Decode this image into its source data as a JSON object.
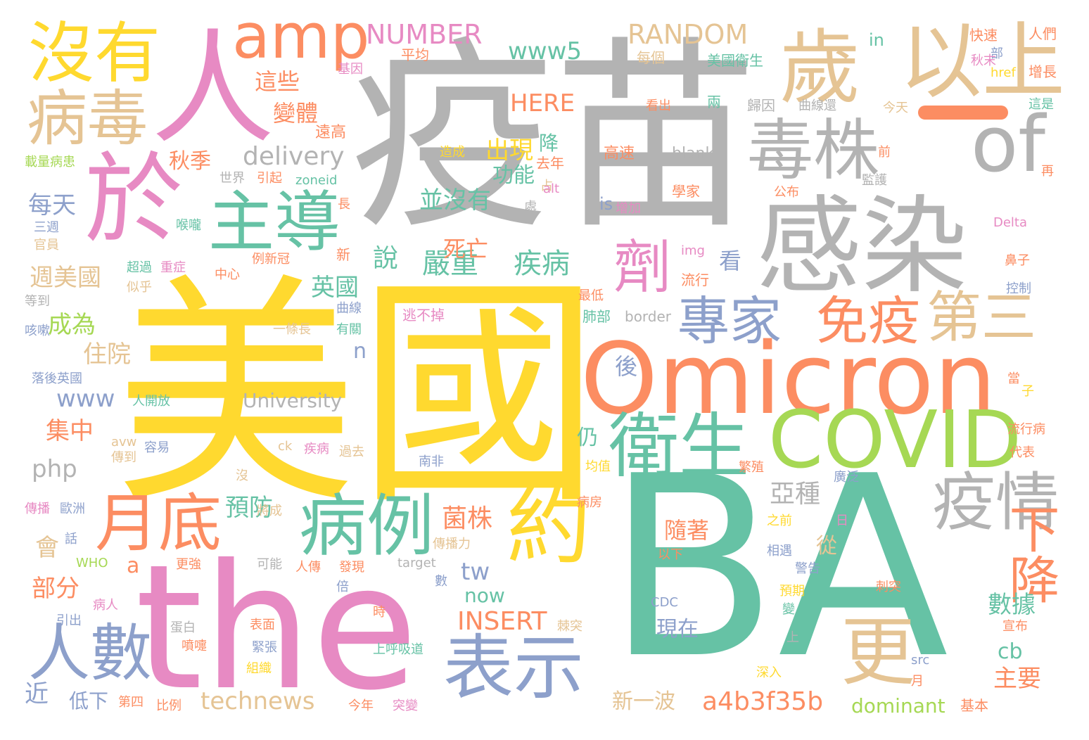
{
  "title": "",
  "palette": [
    "#b3b3b3",
    "#ffd92f",
    "#66c2a5",
    "#e78ac3",
    "#fc8d62",
    "#8da0cb",
    "#a6d854",
    "#e5c494"
  ],
  "words": [
    {
      "text": "疫苗",
      "color": "#b3b3b3"
    },
    {
      "text": "美國",
      "color": "#ffd92f"
    },
    {
      "text": "BA",
      "color": "#66c2a5"
    },
    {
      "text": "the",
      "color": "#e78ac3"
    },
    {
      "text": "Omicron",
      "color": "#fc8d62"
    },
    {
      "text": "感染",
      "color": "#b3b3b3"
    },
    {
      "text": "以上",
      "color": "#e5c494"
    },
    {
      "text": "歲",
      "color": "#e5c494"
    },
    {
      "text": "人",
      "color": "#e78ac3"
    },
    {
      "text": "於",
      "color": "#e78ac3"
    },
    {
      "text": "沒有",
      "color": "#ffd92f"
    },
    {
      "text": "病毒",
      "color": "#e5c494"
    },
    {
      "text": "amp",
      "color": "#fc8d62"
    },
    {
      "text": "of",
      "color": "#b3b3b3"
    },
    {
      "text": "毒株",
      "color": "#b3b3b3"
    },
    {
      "text": "主導",
      "color": "#66c2a5"
    },
    {
      "text": "COVID",
      "color": "#a6d854"
    },
    {
      "text": "衛生",
      "color": "#66c2a5"
    },
    {
      "text": "專家",
      "color": "#8da0cb"
    },
    {
      "text": "免疫",
      "color": "#fc8d62"
    },
    {
      "text": "第三",
      "color": "#e5c494"
    },
    {
      "text": "疫情",
      "color": "#b3b3b3"
    },
    {
      "text": "病例",
      "color": "#66c2a5"
    },
    {
      "text": "約",
      "color": "#ffd92f"
    },
    {
      "text": "表示",
      "color": "#8da0cb"
    },
    {
      "text": "月底",
      "color": "#fc8d62"
    },
    {
      "text": "人數",
      "color": "#8da0cb"
    },
    {
      "text": "更",
      "color": "#e5c494"
    },
    {
      "text": "劑",
      "color": "#e78ac3"
    },
    {
      "text": "下降",
      "color": "#fc8d62"
    },
    {
      "text": "NUMBER",
      "color": "#e78ac3"
    },
    {
      "text": "RANDOM",
      "color": "#e5c494"
    },
    {
      "text": "www5",
      "color": "#66c2a5"
    },
    {
      "text": "HERE",
      "color": "#fc8d62"
    },
    {
      "text": "這些",
      "color": "#fc8d62"
    },
    {
      "text": "變體",
      "color": "#fc8d62"
    },
    {
      "text": "delivery",
      "color": "#b3b3b3"
    },
    {
      "text": "秋季",
      "color": "#fc8d62"
    },
    {
      "text": "降",
      "color": "#66c2a5"
    },
    {
      "text": "出現",
      "color": "#ffd92f"
    },
    {
      "text": "功能",
      "color": "#66c2a5"
    },
    {
      "text": "並沒有",
      "color": "#66c2a5"
    },
    {
      "text": "每天",
      "color": "#8da0cb"
    },
    {
      "text": "嚴重",
      "color": "#66c2a5"
    },
    {
      "text": "疾病",
      "color": "#66c2a5"
    },
    {
      "text": "死亡",
      "color": "#fc8d62"
    },
    {
      "text": "說",
      "color": "#66c2a5"
    },
    {
      "text": "看",
      "color": "#8da0cb"
    },
    {
      "text": "週美國",
      "color": "#e5c494"
    },
    {
      "text": "英國",
      "color": "#66c2a5"
    },
    {
      "text": "成為",
      "color": "#a6d854"
    },
    {
      "text": "住院",
      "color": "#e5c494"
    },
    {
      "text": "n",
      "color": "#8da0cb"
    },
    {
      "text": "www",
      "color": "#8da0cb"
    },
    {
      "text": "University",
      "color": "#b3b3b3"
    },
    {
      "text": "集中",
      "color": "#fc8d62"
    },
    {
      "text": "php",
      "color": "#b3b3b3"
    },
    {
      "text": "仍",
      "color": "#66c2a5"
    },
    {
      "text": "亞種",
      "color": "#b3b3b3"
    },
    {
      "text": "預防",
      "color": "#66c2a5"
    },
    {
      "text": "菌株",
      "color": "#fc8d62"
    },
    {
      "text": "隨著",
      "color": "#fc8d62"
    },
    {
      "text": "從",
      "color": "#e5c494"
    },
    {
      "text": "會",
      "color": "#e5c494"
    },
    {
      "text": "a",
      "color": "#fc8d62"
    },
    {
      "text": "部分",
      "color": "#fc8d62"
    },
    {
      "text": "tw",
      "color": "#8da0cb"
    },
    {
      "text": "now",
      "color": "#66c2a5"
    },
    {
      "text": "INSERT",
      "color": "#fc8d62"
    },
    {
      "text": "現在",
      "color": "#8da0cb"
    },
    {
      "text": "數據",
      "color": "#66c2a5"
    },
    {
      "text": "cb",
      "color": "#66c2a5"
    },
    {
      "text": "主要",
      "color": "#fc8d62"
    },
    {
      "text": "近",
      "color": "#8da0cb"
    },
    {
      "text": "低下",
      "color": "#8da0cb"
    },
    {
      "text": "technews",
      "color": "#e5c494"
    },
    {
      "text": "新一波",
      "color": "#e5c494"
    },
    {
      "text": "a4b3f35b",
      "color": "#fc8d62"
    },
    {
      "text": "dominant",
      "color": "#a6d854"
    },
    {
      "text": "基本",
      "color": "#fc8d62"
    },
    {
      "text": "後",
      "color": "#8da0cb"
    },
    {
      "text": "in",
      "color": "#66c2a5"
    },
    {
      "text": "快速",
      "color": "#fc8d62"
    },
    {
      "text": "人們",
      "color": "#fc8d62"
    },
    {
      "text": "部",
      "color": "#8da0cb"
    },
    {
      "text": "href",
      "color": "#ffd92f"
    },
    {
      "text": "增長",
      "color": "#fc8d62"
    },
    {
      "text": "平均",
      "color": "#fc8d62"
    },
    {
      "text": "每個",
      "color": "#e5c494"
    },
    {
      "text": "美國衛生",
      "color": "#66c2a5"
    },
    {
      "text": "秋末",
      "color": "#e78ac3"
    },
    {
      "text": "基因",
      "color": "#e78ac3"
    },
    {
      "text": "兩",
      "color": "#66c2a5"
    },
    {
      "text": "歸因",
      "color": "#b3b3b3"
    },
    {
      "text": "曲線還",
      "color": "#b3b3b3"
    },
    {
      "text": "這是",
      "color": "#66c2a5"
    },
    {
      "text": "看出",
      "color": "#fc8d62"
    },
    {
      "text": "今天",
      "color": "#e5c494"
    },
    {
      "text": "遠高",
      "color": "#fc8d62"
    },
    {
      "text": "造成",
      "color": "#ffd92f"
    },
    {
      "text": "高速",
      "color": "#fc8d62"
    },
    {
      "text": "blank",
      "color": "#b3b3b3"
    },
    {
      "text": "前",
      "color": "#fc8d62"
    },
    {
      "text": "載量病患",
      "color": "#a6d854"
    },
    {
      "text": "去年",
      "color": "#fc8d62"
    },
    {
      "text": "再",
      "color": "#fc8d62"
    },
    {
      "text": "世界",
      "color": "#b3b3b3"
    },
    {
      "text": "引起",
      "color": "#fc8d62"
    },
    {
      "text": "zoneid",
      "color": "#66c2a5"
    },
    {
      "text": "監護",
      "color": "#b3b3b3"
    },
    {
      "text": "占",
      "color": "#e5c494"
    },
    {
      "text": "alt",
      "color": "#e78ac3"
    },
    {
      "text": "學家",
      "color": "#fc8d62"
    },
    {
      "text": "公布",
      "color": "#fc8d62"
    },
    {
      "text": "長",
      "color": "#fc8d62"
    },
    {
      "text": "處",
      "color": "#b3b3b3"
    },
    {
      "text": "is",
      "color": "#8da0cb"
    },
    {
      "text": "增加",
      "color": "#e78ac3"
    },
    {
      "text": "三週",
      "color": "#8da0cb"
    },
    {
      "text": "官員",
      "color": "#e5c494"
    },
    {
      "text": "喉嚨",
      "color": "#66c2a5"
    },
    {
      "text": "Delta",
      "color": "#e78ac3"
    },
    {
      "text": "新",
      "color": "#fc8d62"
    },
    {
      "text": "img",
      "color": "#e78ac3"
    },
    {
      "text": "例新冠",
      "color": "#fc8d62"
    },
    {
      "text": "鼻子",
      "color": "#fc8d62"
    },
    {
      "text": "超過",
      "color": "#66c2a5"
    },
    {
      "text": "重症",
      "color": "#e78ac3"
    },
    {
      "text": "中心",
      "color": "#fc8d62"
    },
    {
      "text": "似乎",
      "color": "#e5c494"
    },
    {
      "text": "流行",
      "color": "#fc8d62"
    },
    {
      "text": "控制",
      "color": "#8da0cb"
    },
    {
      "text": "等到",
      "color": "#b3b3b3"
    },
    {
      "text": "最低",
      "color": "#fc8d62"
    },
    {
      "text": "曲線",
      "color": "#8da0cb"
    },
    {
      "text": "border",
      "color": "#b3b3b3"
    },
    {
      "text": "肺部",
      "color": "#66c2a5"
    },
    {
      "text": "逃不掉",
      "color": "#e78ac3"
    },
    {
      "text": "一條長",
      "color": "#e5c494"
    },
    {
      "text": "有關",
      "color": "#66c2a5"
    },
    {
      "text": "咳嗽",
      "color": "#8da0cb"
    },
    {
      "text": "落後英國",
      "color": "#8da0cb"
    },
    {
      "text": "當",
      "color": "#fc8d62"
    },
    {
      "text": "子",
      "color": "#ffd92f"
    },
    {
      "text": "人開放",
      "color": "#66c2a5"
    },
    {
      "text": "流行病",
      "color": "#fc8d62"
    },
    {
      "text": "avw",
      "color": "#e5c494"
    },
    {
      "text": "容易",
      "color": "#8da0cb"
    },
    {
      "text": "ck",
      "color": "#e5c494"
    },
    {
      "text": "疾病",
      "color": "#e78ac3"
    },
    {
      "text": "過去",
      "color": "#e5c494"
    },
    {
      "text": "傳到",
      "color": "#e5c494"
    },
    {
      "text": "南非",
      "color": "#8da0cb"
    },
    {
      "text": "代表",
      "color": "#fc8d62"
    },
    {
      "text": "沒",
      "color": "#e5c494"
    },
    {
      "text": "均值",
      "color": "#ffd92f"
    },
    {
      "text": "繁殖",
      "color": "#fc8d62"
    },
    {
      "text": "廣泛",
      "color": "#8da0cb"
    },
    {
      "text": "傳播",
      "color": "#e78ac3"
    },
    {
      "text": "歐洲",
      "color": "#8da0cb"
    },
    {
      "text": "病房",
      "color": "#fc8d62"
    },
    {
      "text": "將成",
      "color": "#e5c494"
    },
    {
      "text": "之前",
      "color": "#ffd92f"
    },
    {
      "text": "日",
      "color": "#e78ac3"
    },
    {
      "text": "話",
      "color": "#8da0cb"
    },
    {
      "text": "傳播力",
      "color": "#e5c494"
    },
    {
      "text": "以下",
      "color": "#fc8d62"
    },
    {
      "text": "相遇",
      "color": "#8da0cb"
    },
    {
      "text": "WHO",
      "color": "#a6d854"
    },
    {
      "text": "更強",
      "color": "#fc8d62"
    },
    {
      "text": "可能",
      "color": "#b3b3b3"
    },
    {
      "text": "人傳",
      "color": "#fc8d62"
    },
    {
      "text": "發現",
      "color": "#fc8d62"
    },
    {
      "text": "target",
      "color": "#b3b3b3"
    },
    {
      "text": "警告",
      "color": "#8da0cb"
    },
    {
      "text": "倍",
      "color": "#8da0cb"
    },
    {
      "text": "數",
      "color": "#8da0cb"
    },
    {
      "text": "刺突",
      "color": "#fc8d62"
    },
    {
      "text": "預期",
      "color": "#ffd92f"
    },
    {
      "text": "病人",
      "color": "#e78ac3"
    },
    {
      "text": "CDC",
      "color": "#8da0cb"
    },
    {
      "text": "時",
      "color": "#fc8d62"
    },
    {
      "text": "變",
      "color": "#66c2a5"
    },
    {
      "text": "引出",
      "color": "#8da0cb"
    },
    {
      "text": "蛋白",
      "color": "#b3b3b3"
    },
    {
      "text": "表面",
      "color": "#fc8d62"
    },
    {
      "text": "棘突",
      "color": "#e5c494"
    },
    {
      "text": "宣布",
      "color": "#fc8d62"
    },
    {
      "text": "噴嚏",
      "color": "#fc8d62"
    },
    {
      "text": "緊張",
      "color": "#8da0cb"
    },
    {
      "text": "上呼吸道",
      "color": "#66c2a5"
    },
    {
      "text": "上",
      "color": "#b3b3b3"
    },
    {
      "text": "組織",
      "color": "#ffd92f"
    },
    {
      "text": "src",
      "color": "#8da0cb"
    },
    {
      "text": "深入",
      "color": "#ffd92f"
    },
    {
      "text": "月",
      "color": "#fc8d62"
    },
    {
      "text": "第四",
      "color": "#fc8d62"
    },
    {
      "text": "比例",
      "color": "#fc8d62"
    },
    {
      "text": "今年",
      "color": "#fc8d62"
    },
    {
      "text": "突變",
      "color": "#e78ac3"
    }
  ]
}
